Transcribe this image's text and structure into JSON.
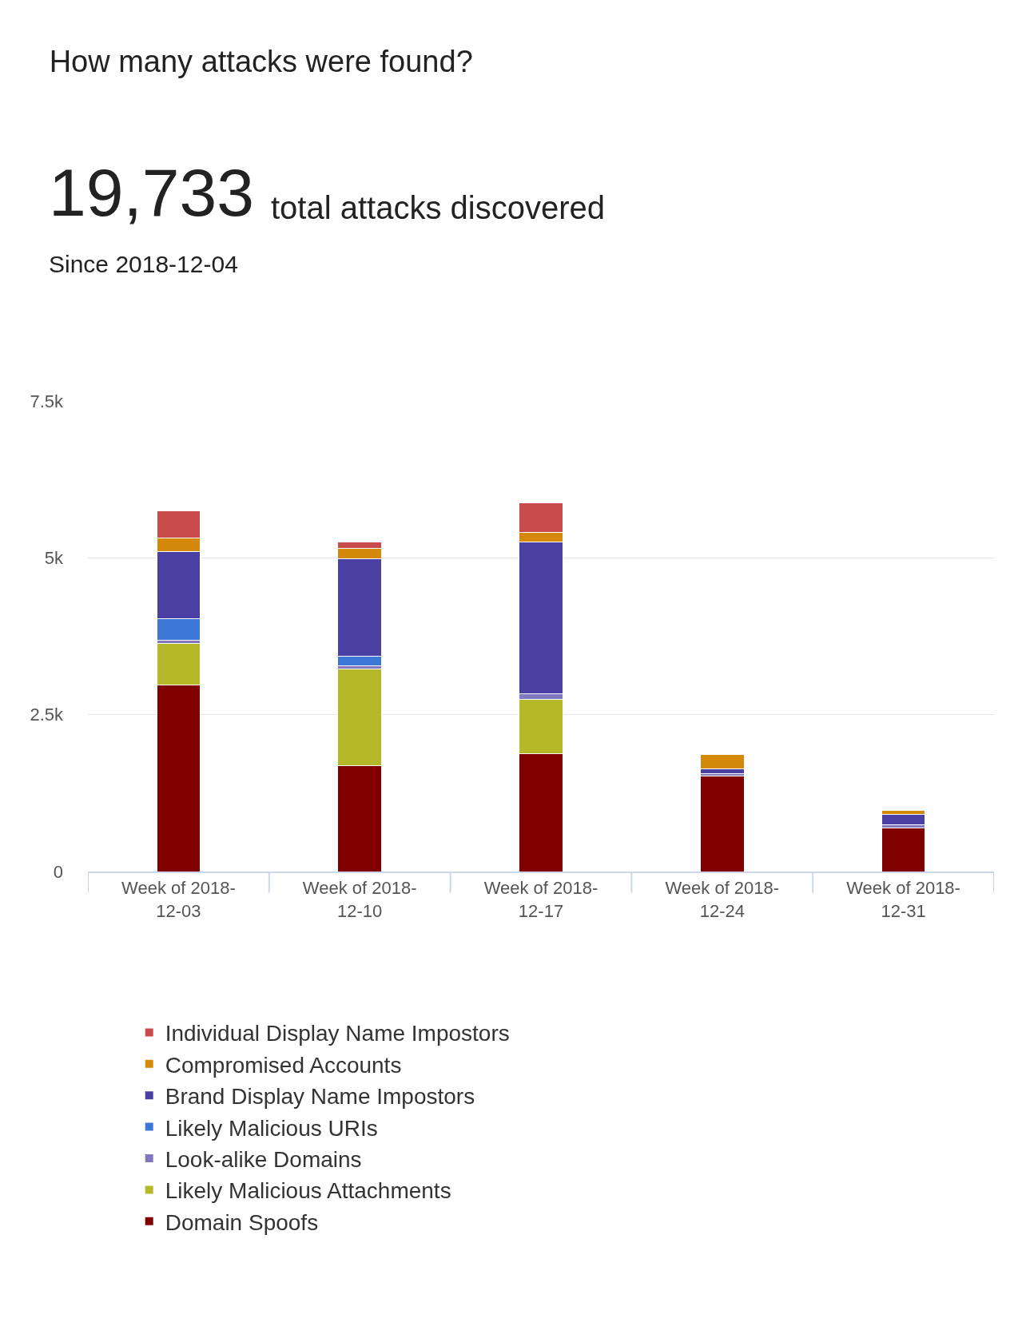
{
  "chart_data": {
    "type": "bar",
    "title": "How many attacks were found?",
    "subtitle": "Since 2018-12-04",
    "annotations": [
      "19,733",
      "total attacks discovered"
    ],
    "categories": [
      "Week of 2018-12-03",
      "Week of 2018-12-10",
      "Week of 2018-12-17",
      "Week of 2018-12-24",
      "Week of 2018-12-31"
    ],
    "stacked": true,
    "series": [
      {
        "name": "Domain Spoofs",
        "color": "#800000",
        "values": [
          2970,
          1690,
          1880,
          1520,
          700
        ]
      },
      {
        "name": "Likely Malicious Attachments",
        "color": "#b5b828",
        "values": [
          670,
          1540,
          870,
          null,
          null
        ]
      },
      {
        "name": "Look-alike Domains",
        "color": "#8078c0",
        "values": [
          50,
          50,
          80,
          40,
          40
        ]
      },
      {
        "name": "Likely Malicious URIs",
        "color": "#3e78d6",
        "values": [
          340,
          150,
          null,
          null,
          null
        ]
      },
      {
        "name": "Brand Display Name Impostors",
        "color": "#4a3fa3",
        "values": [
          1070,
          1560,
          2420,
          80,
          170
        ]
      },
      {
        "name": "Compromised Accounts",
        "color": "#d4890a",
        "values": [
          210,
          160,
          160,
          220,
          60
        ]
      },
      {
        "name": "Individual Display Name Impostors",
        "color": "#c94c4c",
        "values": [
          440,
          100,
          470,
          null,
          null
        ]
      }
    ],
    "ylim": [
      0,
      7500
    ],
    "yticks": [
      0,
      {
        "value": 2500,
        "label": "2.5k"
      },
      {
        "value": 5000,
        "label": "5k"
      },
      {
        "value": 7500,
        "label": "7.5k"
      }
    ],
    "grid": "y",
    "legend": "bottom"
  }
}
